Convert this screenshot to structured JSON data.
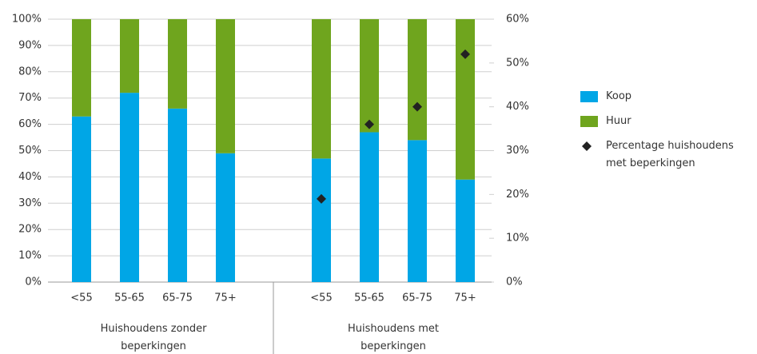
{
  "chart_data": {
    "type": "bar",
    "stacked": true,
    "categories": [
      "<55",
      "55-65",
      "65-75",
      "75+",
      null,
      "<55",
      "55-65",
      "65-75",
      "75+"
    ],
    "groups": [
      "Huishoudens zonder beperkingen",
      "Huishoudens met beperkingen"
    ],
    "series": [
      {
        "name": "Koop",
        "color": "#00a6e6",
        "values": [
          63,
          72,
          66,
          49,
          null,
          47,
          57,
          54,
          39
        ]
      },
      {
        "name": "Huur",
        "color": "#6fa51e",
        "values": [
          37,
          28,
          34,
          51,
          null,
          53,
          43,
          46,
          61
        ]
      },
      {
        "name": "Percentage huishoudens met beperkingen",
        "color": "#222222",
        "type": "scatter",
        "axis": "y2",
        "values": [
          null,
          null,
          null,
          null,
          null,
          19,
          36,
          40,
          52
        ]
      }
    ],
    "ylim": [
      0,
      100
    ],
    "yticks": [
      {
        "value": 0,
        "label": "0%"
      },
      {
        "value": 10,
        "label": "10%"
      },
      {
        "value": 20,
        "label": "20%"
      },
      {
        "value": 30,
        "label": "30%"
      },
      {
        "value": 40,
        "label": "40%"
      },
      {
        "value": 50,
        "label": "50%"
      },
      {
        "value": 60,
        "label": "60%"
      },
      {
        "value": 70,
        "label": "70%"
      },
      {
        "value": 80,
        "label": "80%"
      },
      {
        "value": 90,
        "label": "90%"
      },
      {
        "value": 100,
        "label": "100%"
      }
    ],
    "y2lim": [
      0,
      60
    ],
    "y2ticks": [
      {
        "value": 0,
        "label": "0%"
      },
      {
        "value": 10,
        "label": "10%"
      },
      {
        "value": 20,
        "label": "20%"
      },
      {
        "value": 30,
        "label": "30%"
      },
      {
        "value": 40,
        "label": "40%"
      },
      {
        "value": 50,
        "label": "50%"
      },
      {
        "value": 60,
        "label": "60%"
      }
    ],
    "grid": true,
    "legend": "right"
  }
}
